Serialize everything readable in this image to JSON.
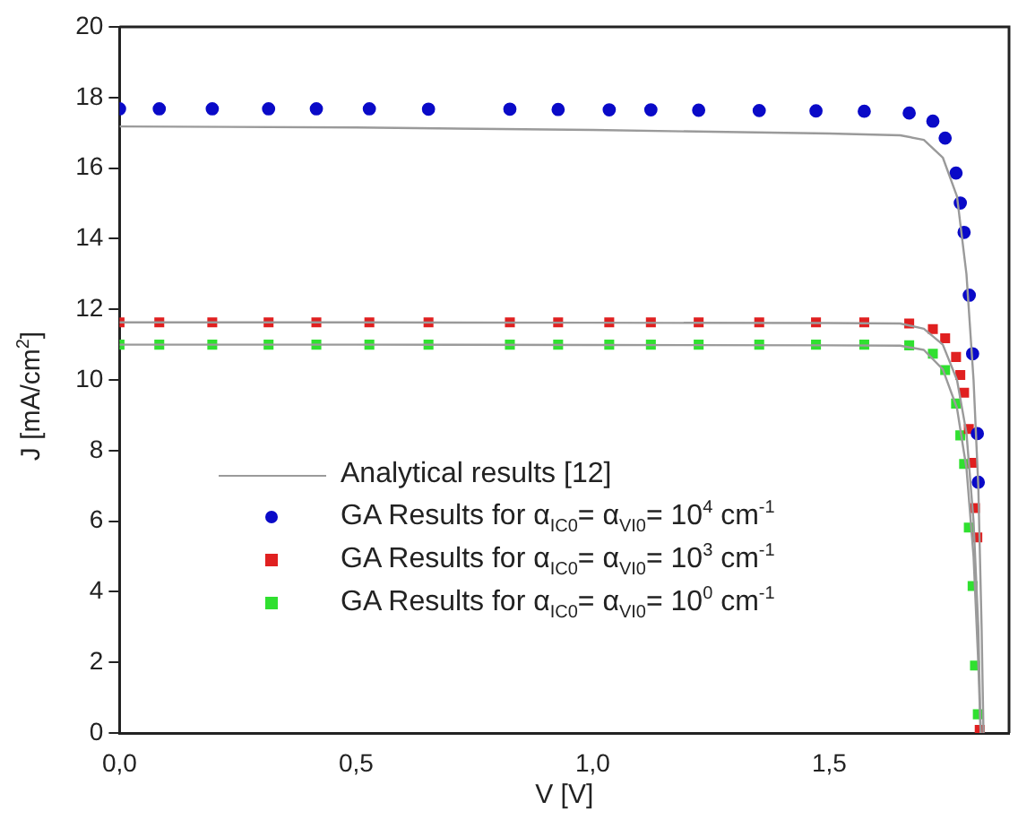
{
  "chart_data": {
    "type": "scatter",
    "xlabel": "V [V]",
    "ylabel": "J [mA/cm$^{2}$]",
    "xlim": [
      0,
      1.88
    ],
    "ylim": [
      0,
      20
    ],
    "xticks": [
      {
        "value": 0,
        "label": "0,0"
      },
      {
        "value": 0.5,
        "label": "0,5"
      },
      {
        "value": 1,
        "label": "1,0"
      },
      {
        "value": 1.5,
        "label": "1,5"
      }
    ],
    "yticks": [
      0,
      2,
      4,
      6,
      8,
      10,
      12,
      14,
      16,
      18,
      20
    ],
    "grid": false,
    "legend": "left",
    "series": [
      {
        "name": "Analytical results [12]",
        "type": "line",
        "marker": "none",
        "color": "#9a9a9a",
        "x": [
          0,
          0.5,
          1.0,
          1.5,
          1.65,
          1.7,
          1.74,
          1.77,
          1.79,
          1.805,
          1.815,
          1.822,
          1.826
        ],
        "values": [
          17.18,
          17.15,
          17.08,
          16.98,
          16.93,
          16.8,
          16.3,
          15.2,
          13,
          10,
          7,
          3,
          0
        ]
      },
      {
        "type": "line",
        "marker": "none",
        "color": "#9a9a9a",
        "x": [
          0,
          0.5,
          1.0,
          1.5,
          1.65,
          1.7,
          1.74,
          1.77,
          1.79,
          1.805,
          1.815,
          1.82
        ],
        "values": [
          11.63,
          11.63,
          11.62,
          11.61,
          11.6,
          11.45,
          11.0,
          10.0,
          8.5,
          6.0,
          3.0,
          0
        ]
      },
      {
        "type": "line",
        "marker": "none",
        "color": "#9a9a9a",
        "x": [
          0,
          0.5,
          1.0,
          1.5,
          1.65,
          1.7,
          1.74,
          1.77,
          1.79,
          1.805,
          1.815,
          1.82
        ],
        "values": [
          11.0,
          11.0,
          10.99,
          10.98,
          10.97,
          10.85,
          10.3,
          9.2,
          7.5,
          5.0,
          2.0,
          0
        ]
      },
      {
        "name": "GA Results for α$_{IC0}$= α$_{VI0}$= 10$^{4}$ cm$^{-1}$",
        "marker": "circle",
        "color": "#0a0ac8",
        "x": [
          0,
          0.084,
          0.196,
          0.315,
          0.416,
          0.528,
          0.653,
          0.825,
          0.927,
          1.035,
          1.123,
          1.224,
          1.352,
          1.472,
          1.574,
          1.669,
          1.719,
          1.745,
          1.768,
          1.777,
          1.785,
          1.796,
          1.803,
          1.813,
          1.815
        ],
        "values": [
          17.68,
          17.68,
          17.68,
          17.68,
          17.68,
          17.68,
          17.67,
          17.67,
          17.66,
          17.65,
          17.65,
          17.64,
          17.63,
          17.62,
          17.61,
          17.56,
          17.33,
          16.85,
          15.86,
          15.01,
          14.18,
          12.4,
          10.74,
          8.48,
          7.1
        ]
      },
      {
        "name": "GA Results for α$_{IC0}$= α$_{VI0}$= 10$^{3}$ cm$^{-1}$",
        "marker": "square",
        "color": "#e02020",
        "x": [
          0,
          0.084,
          0.196,
          0.315,
          0.416,
          0.528,
          0.653,
          0.825,
          0.927,
          1.035,
          1.123,
          1.224,
          1.352,
          1.472,
          1.574,
          1.669,
          1.719,
          1.745,
          1.768,
          1.777,
          1.785,
          1.795,
          1.803,
          1.808,
          1.813,
          1.818
        ],
        "values": [
          11.63,
          11.63,
          11.63,
          11.63,
          11.63,
          11.63,
          11.63,
          11.63,
          11.63,
          11.63,
          11.63,
          11.63,
          11.63,
          11.63,
          11.63,
          11.6,
          11.44,
          11.18,
          10.65,
          10.14,
          9.64,
          8.61,
          7.65,
          6.37,
          5.54,
          0.09
        ]
      },
      {
        "name": "GA Results for α$_{IC0}$= α$_{VI0}$= 10$^{0}$ cm$^{-1}$",
        "marker": "square",
        "color": "#30e030",
        "x": [
          0,
          0.084,
          0.196,
          0.315,
          0.416,
          0.528,
          0.653,
          0.825,
          0.927,
          1.035,
          1.123,
          1.224,
          1.352,
          1.472,
          1.574,
          1.669,
          1.719,
          1.745,
          1.768,
          1.777,
          1.785,
          1.795,
          1.803,
          1.808,
          1.814
        ],
        "values": [
          11.0,
          11.0,
          11.0,
          11.0,
          11.0,
          11.0,
          11.0,
          11.0,
          11.0,
          11.0,
          11.0,
          11.0,
          11.0,
          11.0,
          11.0,
          10.98,
          10.74,
          10.28,
          9.33,
          8.43,
          7.62,
          5.82,
          4.16,
          1.91,
          0.53
        ]
      }
    ]
  }
}
